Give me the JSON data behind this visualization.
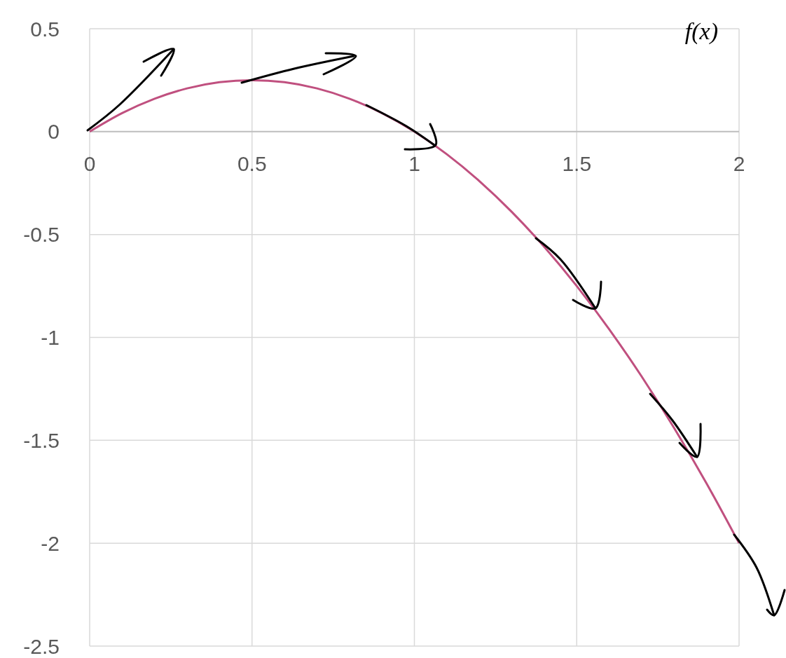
{
  "chart_data": {
    "type": "line",
    "ylabel": "f(x)",
    "x": [
      0,
      0.1,
      0.2,
      0.3,
      0.4,
      0.5,
      0.6,
      0.7,
      0.8,
      0.9,
      1,
      1.1,
      1.2,
      1.3,
      1.4,
      1.5,
      1.6,
      1.7,
      1.8,
      1.9,
      2
    ],
    "series": [
      {
        "color": "#c0507f",
        "values": [
          0,
          0.09,
          0.16,
          0.21,
          0.24,
          0.25,
          0.24,
          0.21,
          0.16,
          0.09,
          0,
          -0.11,
          -0.24,
          -0.39,
          -0.56,
          -0.75,
          -0.96,
          -1.19,
          -1.44,
          -1.71,
          -2
        ]
      }
    ],
    "xlim": [
      0,
      2
    ],
    "ylim": [
      -2.5,
      0.5
    ],
    "xticks": [
      0,
      0.5,
      1,
      1.5,
      2
    ],
    "yticks": [
      0.5,
      0,
      -0.5,
      -1,
      -1.5,
      -2,
      -2.5
    ],
    "grid": true
  }
}
